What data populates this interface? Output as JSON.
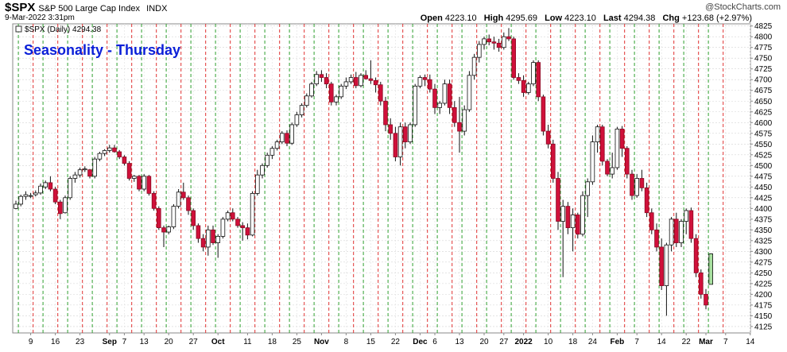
{
  "header": {
    "symbol": "$SPX",
    "description": "S&P 500 Large Cap Index",
    "exchange": "INDX",
    "timestamp": "9-Mar-2022 3:31pm",
    "copyright": "@StockCharts.com",
    "legend_label": "$SPX (Daily) 4294.38",
    "open_label": "Open",
    "open_value": "4223.10",
    "high_label": "High",
    "high_value": "4295.69",
    "low_label": "Low",
    "low_value": "4223.10",
    "last_label": "Last",
    "last_value": "4294.38",
    "chg_label": "Chg",
    "chg_value": "+123.68 (+2.97%)"
  },
  "chart_data": {
    "type": "candlestick",
    "title": "Seasonality - Thursday",
    "colors": {
      "up_fill": "#ffffff",
      "down_fill": "#d0103a",
      "outline": "#111111",
      "last_up_fill": "#a8e0a0",
      "title": "#0a1fd8",
      "green_line": "#2ea02e",
      "red_line": "#e03030"
    },
    "ylim": [
      4110,
      4830
    ],
    "y_ticks": [
      4125,
      4150,
      4175,
      4200,
      4225,
      4250,
      4275,
      4300,
      4325,
      4350,
      4375,
      4400,
      4425,
      4450,
      4475,
      4500,
      4525,
      4550,
      4575,
      4600,
      4625,
      4650,
      4675,
      4700,
      4725,
      4750,
      4775,
      4800,
      4825
    ],
    "x_labels": [
      {
        "i": 3,
        "t": "9"
      },
      {
        "i": 8,
        "t": "16"
      },
      {
        "i": 13,
        "t": "23"
      },
      {
        "i": 19,
        "t": "Sep"
      },
      {
        "i": 22,
        "t": "7"
      },
      {
        "i": 26,
        "t": "13"
      },
      {
        "i": 31,
        "t": "20"
      },
      {
        "i": 36,
        "t": "27"
      },
      {
        "i": 41,
        "t": "Oct"
      },
      {
        "i": 47,
        "t": "11"
      },
      {
        "i": 52,
        "t": "18"
      },
      {
        "i": 57,
        "t": "25"
      },
      {
        "i": 62,
        "t": "Nov"
      },
      {
        "i": 67,
        "t": "8"
      },
      {
        "i": 72,
        "t": "15"
      },
      {
        "i": 77,
        "t": "22"
      },
      {
        "i": 82,
        "t": "Dec"
      },
      {
        "i": 85,
        "t": "6"
      },
      {
        "i": 90,
        "t": "13"
      },
      {
        "i": 95,
        "t": "20"
      },
      {
        "i": 99,
        "t": "27"
      },
      {
        "i": 103,
        "t": "2022"
      },
      {
        "i": 108,
        "t": "10"
      },
      {
        "i": 113,
        "t": "18"
      },
      {
        "i": 117,
        "t": "24"
      },
      {
        "i": 122,
        "t": "Feb"
      },
      {
        "i": 126,
        "t": "7"
      },
      {
        "i": 131,
        "t": "14"
      },
      {
        "i": 136,
        "t": "22"
      },
      {
        "i": 140,
        "t": "Mar"
      },
      {
        "i": 144,
        "t": "7"
      },
      {
        "i": 149,
        "t": "14"
      }
    ],
    "green_lines": [
      0,
      5,
      10,
      15,
      20,
      25,
      30,
      35,
      40,
      45,
      50,
      55,
      60,
      65,
      70,
      75,
      80,
      85,
      90,
      95,
      100,
      105,
      110,
      115,
      120,
      125,
      130,
      135,
      140
    ],
    "red_lines": [
      3,
      8,
      13,
      18,
      23,
      28,
      33,
      38,
      43,
      48,
      53,
      58,
      63,
      68,
      73,
      78,
      83,
      88,
      93,
      98,
      103,
      108,
      113,
      118,
      123,
      128,
      133,
      138,
      143
    ],
    "candles": [
      [
        4400,
        4418,
        4398,
        4410
      ],
      [
        4410,
        4432,
        4405,
        4428
      ],
      [
        4428,
        4440,
        4420,
        4432
      ],
      [
        4430,
        4436,
        4424,
        4430
      ],
      [
        4432,
        4442,
        4428,
        4436
      ],
      [
        4436,
        4458,
        4432,
        4452
      ],
      [
        4450,
        4465,
        4445,
        4460
      ],
      [
        4460,
        4475,
        4440,
        4445
      ],
      [
        4445,
        4450,
        4410,
        4415
      ],
      [
        4415,
        4420,
        4375,
        4388
      ],
      [
        4390,
        4430,
        4388,
        4425
      ],
      [
        4425,
        4475,
        4420,
        4470
      ],
      [
        4470,
        4485,
        4460,
        4478
      ],
      [
        4478,
        4495,
        4472,
        4490
      ],
      [
        4490,
        4498,
        4485,
        4492
      ],
      [
        4490,
        4492,
        4470,
        4475
      ],
      [
        4475,
        4520,
        4470,
        4515
      ],
      [
        4515,
        4532,
        4510,
        4528
      ],
      [
        4528,
        4538,
        4522,
        4535
      ],
      [
        4535,
        4548,
        4530,
        4541
      ],
      [
        4541,
        4548,
        4530,
        4532
      ],
      [
        4532,
        4536,
        4515,
        4520
      ],
      [
        4520,
        4524,
        4500,
        4505
      ],
      [
        4505,
        4510,
        4465,
        4470
      ],
      [
        4470,
        4478,
        4462,
        4475
      ],
      [
        4475,
        4478,
        4440,
        4445
      ],
      [
        4445,
        4480,
        4440,
        4475
      ],
      [
        4475,
        4478,
        4430,
        4435
      ],
      [
        4435,
        4440,
        4395,
        4400
      ],
      [
        4400,
        4405,
        4350,
        4355
      ],
      [
        4355,
        4360,
        4310,
        4345
      ],
      [
        4345,
        4360,
        4340,
        4357
      ],
      [
        4357,
        4410,
        4352,
        4405
      ],
      [
        4405,
        4445,
        4400,
        4438
      ],
      [
        4438,
        4460,
        4420,
        4425
      ],
      [
        4425,
        4430,
        4385,
        4395
      ],
      [
        4395,
        4400,
        4350,
        4360
      ],
      [
        4360,
        4365,
        4320,
        4330
      ],
      [
        4330,
        4340,
        4300,
        4310
      ],
      [
        4310,
        4360,
        4290,
        4350
      ],
      [
        4350,
        4360,
        4315,
        4320
      ],
      [
        4320,
        4340,
        4285,
        4335
      ],
      [
        4335,
        4380,
        4330,
        4375
      ],
      [
        4375,
        4395,
        4370,
        4390
      ],
      [
        4390,
        4400,
        4370,
        4375
      ],
      [
        4375,
        4380,
        4355,
        4360
      ],
      [
        4360,
        4368,
        4325,
        4355
      ],
      [
        4355,
        4365,
        4328,
        4338
      ],
      [
        4338,
        4440,
        4335,
        4435
      ],
      [
        4435,
        4490,
        4430,
        4478
      ],
      [
        4478,
        4505,
        4470,
        4500
      ],
      [
        4500,
        4530,
        4495,
        4524
      ],
      [
        4524,
        4545,
        4515,
        4540
      ],
      [
        4540,
        4560,
        4535,
        4555
      ],
      [
        4555,
        4580,
        4550,
        4575
      ],
      [
        4575,
        4582,
        4545,
        4552
      ],
      [
        4552,
        4600,
        4548,
        4595
      ],
      [
        4595,
        4625,
        4590,
        4618
      ],
      [
        4618,
        4645,
        4612,
        4640
      ],
      [
        4640,
        4668,
        4635,
        4662
      ],
      [
        4662,
        4695,
        4658,
        4690
      ],
      [
        4690,
        4720,
        4685,
        4712
      ],
      [
        4712,
        4722,
        4695,
        4705
      ],
      [
        4705,
        4715,
        4680,
        4690
      ],
      [
        4690,
        4695,
        4640,
        4648
      ],
      [
        4648,
        4665,
        4640,
        4660
      ],
      [
        4660,
        4690,
        4655,
        4685
      ],
      [
        4685,
        4705,
        4678,
        4695
      ],
      [
        4695,
        4712,
        4690,
        4705
      ],
      [
        4705,
        4718,
        4680,
        4686
      ],
      [
        4686,
        4715,
        4682,
        4710
      ],
      [
        4710,
        4722,
        4700,
        4702
      ],
      [
        4702,
        4745,
        4690,
        4698
      ],
      [
        4698,
        4705,
        4670,
        4688
      ],
      [
        4688,
        4695,
        4640,
        4650
      ],
      [
        4650,
        4660,
        4580,
        4595
      ],
      [
        4595,
        4610,
        4560,
        4575
      ],
      [
        4575,
        4590,
        4510,
        4520
      ],
      [
        4520,
        4600,
        4500,
        4590
      ],
      [
        4590,
        4600,
        4540,
        4555
      ],
      [
        4555,
        4600,
        4550,
        4595
      ],
      [
        4595,
        4690,
        4590,
        4685
      ],
      [
        4685,
        4710,
        4680,
        4705
      ],
      [
        4705,
        4712,
        4685,
        4700
      ],
      [
        4700,
        4712,
        4670,
        4678
      ],
      [
        4678,
        4690,
        4620,
        4635
      ],
      [
        4635,
        4650,
        4620,
        4645
      ],
      [
        4645,
        4700,
        4640,
        4690
      ],
      [
        4690,
        4700,
        4620,
        4635
      ],
      [
        4635,
        4650,
        4590,
        4600
      ],
      [
        4600,
        4660,
        4530,
        4580
      ],
      [
        4580,
        4640,
        4570,
        4630
      ],
      [
        4630,
        4720,
        4625,
        4710
      ],
      [
        4710,
        4760,
        4700,
        4752
      ],
      [
        4752,
        4790,
        4740,
        4782
      ],
      [
        4782,
        4800,
        4770,
        4795
      ],
      [
        4795,
        4805,
        4780,
        4788
      ],
      [
        4788,
        4800,
        4770,
        4785
      ],
      [
        4785,
        4795,
        4765,
        4775
      ],
      [
        4775,
        4810,
        4770,
        4800
      ],
      [
        4800,
        4820,
        4790,
        4795
      ],
      [
        4795,
        4800,
        4700,
        4705
      ],
      [
        4705,
        4715,
        4690,
        4698
      ],
      [
        4698,
        4710,
        4660,
        4670
      ],
      [
        4670,
        4695,
        4665,
        4690
      ],
      [
        4690,
        4745,
        4685,
        4740
      ],
      [
        4740,
        4745,
        4650,
        4660
      ],
      [
        4660,
        4665,
        4570,
        4580
      ],
      [
        4580,
        4595,
        4540,
        4550
      ],
      [
        4550,
        4560,
        4460,
        4470
      ],
      [
        4470,
        4485,
        4350,
        4370
      ],
      [
        4370,
        4420,
        4240,
        4405
      ],
      [
        4405,
        4415,
        4340,
        4355
      ],
      [
        4355,
        4400,
        4300,
        4385
      ],
      [
        4385,
        4390,
        4330,
        4340
      ],
      [
        4340,
        4440,
        4335,
        4430
      ],
      [
        4430,
        4470,
        4380,
        4462
      ],
      [
        4462,
        4570,
        4455,
        4555
      ],
      [
        4555,
        4595,
        4530,
        4590
      ],
      [
        4590,
        4595,
        4500,
        4510
      ],
      [
        4510,
        4515,
        4475,
        4480
      ],
      [
        4480,
        4530,
        4470,
        4495
      ],
      [
        4495,
        4590,
        4490,
        4585
      ],
      [
        4585,
        4592,
        4520,
        4540
      ],
      [
        4540,
        4545,
        4470,
        4480
      ],
      [
        4480,
        4490,
        4420,
        4430
      ],
      [
        4430,
        4480,
        4425,
        4470
      ],
      [
        4470,
        4490,
        4440,
        4448
      ],
      [
        4448,
        4460,
        4380,
        4390
      ],
      [
        4390,
        4400,
        4340,
        4350
      ],
      [
        4350,
        4365,
        4300,
        4310
      ],
      [
        4310,
        4330,
        4210,
        4220
      ],
      [
        4220,
        4320,
        4150,
        4315
      ],
      [
        4315,
        4380,
        4300,
        4375
      ],
      [
        4375,
        4390,
        4310,
        4320
      ],
      [
        4320,
        4375,
        4310,
        4370
      ],
      [
        4370,
        4400,
        4340,
        4395
      ],
      [
        4395,
        4402,
        4320,
        4330
      ],
      [
        4330,
        4340,
        4240,
        4250
      ],
      [
        4250,
        4258,
        4190,
        4200
      ],
      [
        4200,
        4212,
        4165,
        4175
      ],
      [
        4223.1,
        4295.69,
        4223.1,
        4294.38
      ]
    ]
  }
}
